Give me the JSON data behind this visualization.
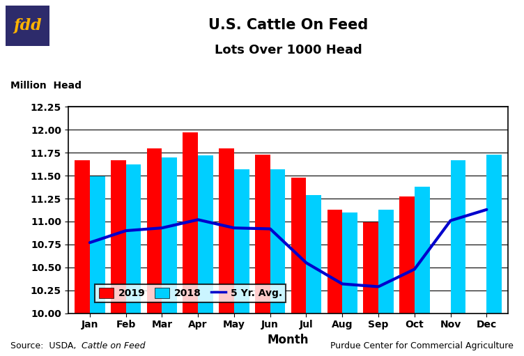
{
  "title_line1": "U.S. Cattle On Feed",
  "title_line2": "Lots Over 1000 Head",
  "ylabel": "Million  Head",
  "xlabel": "Month",
  "months": [
    "Jan",
    "Feb",
    "Mar",
    "Apr",
    "May",
    "Jun",
    "Jul",
    "Aug",
    "Sep",
    "Oct",
    "Nov",
    "Dec"
  ],
  "values_2019": [
    11.67,
    11.67,
    11.8,
    11.97,
    11.8,
    11.73,
    11.48,
    11.13,
    10.99,
    11.27,
    null,
    null
  ],
  "values_2018": [
    11.49,
    11.62,
    11.7,
    11.72,
    11.57,
    11.57,
    11.29,
    11.1,
    11.13,
    11.38,
    11.67,
    11.73
  ],
  "avg_line_x": [
    0,
    1,
    2,
    3,
    4,
    5,
    6,
    7,
    8,
    9,
    10,
    11
  ],
  "avg_line_y": [
    10.77,
    10.9,
    10.93,
    11.02,
    10.93,
    10.92,
    10.55,
    10.32,
    10.29,
    10.48,
    11.01,
    11.13
  ],
  "color_2019": "#FF0000",
  "color_2018": "#00CFFF",
  "color_avg": "#0000CC",
  "ylim_min": 10.0,
  "ylim_max": 12.25,
  "yticks": [
    10.0,
    10.25,
    10.5,
    10.75,
    11.0,
    11.25,
    11.5,
    11.75,
    12.0,
    12.25
  ],
  "source_right": "Purdue Center for Commercial Agriculture",
  "fdd_bg_color": "#2D2B6B",
  "fdd_text_color": "#FFB300",
  "background_color": "#FFFFFF"
}
